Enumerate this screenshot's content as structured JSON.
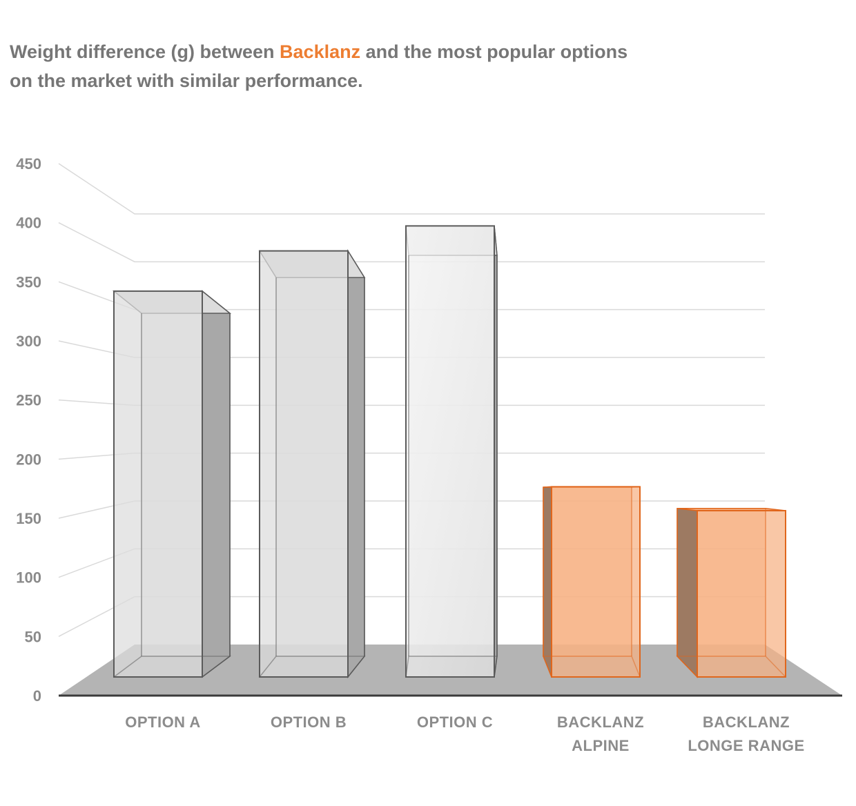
{
  "title": {
    "part1": "Weight difference (g) between ",
    "brand": "Backlanz",
    "part2": " and the most popular options",
    "line2": "on the market with similar performance."
  },
  "colors": {
    "brand": "#ED7D31",
    "bar_gray_fill": "#dcdcdc",
    "bar_gray_edge": "#5a5a5a",
    "bar_orange_fill": "#F7B183",
    "bar_orange_edge": "#E0661C",
    "floor": "#b4b4b4",
    "grid": "#d9d9d9"
  },
  "chart_data": {
    "type": "bar",
    "style": "3d-column",
    "categories": [
      [
        "OPTION A"
      ],
      [
        "OPTION B"
      ],
      [
        "OPTION C"
      ],
      [
        "BACKLANZ",
        "ALPINE"
      ],
      [
        "BACKLANZ",
        "LONGE RANGE"
      ]
    ],
    "values": [
      355,
      392,
      415,
      175,
      153
    ],
    "highlight": [
      false,
      false,
      false,
      true,
      true
    ],
    "ylim": [
      0,
      450
    ],
    "yticks": [
      0,
      50,
      100,
      150,
      200,
      250,
      300,
      350,
      400,
      450
    ],
    "grid": true,
    "xlabel": "",
    "ylabel": ""
  }
}
